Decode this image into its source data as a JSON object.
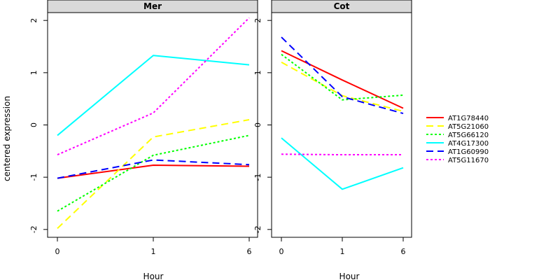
{
  "chart_data": [
    {
      "type": "line",
      "title": "Mer",
      "xlabel": "Hour",
      "ylabel": "centered expression",
      "x": [
        0,
        1,
        6
      ],
      "xticks": [
        "0",
        "1",
        "6"
      ],
      "yticks": [
        "-2",
        "-1",
        "0",
        "1",
        "2"
      ],
      "ylim": [
        -2.15,
        2.15
      ],
      "series": [
        {
          "name": "AT1G78440",
          "color": "#ff0000",
          "dash": "solid",
          "values": [
            -1.02,
            -0.77,
            -0.79
          ]
        },
        {
          "name": "AT5G21060",
          "color": "#ffff00",
          "dash": "dashed",
          "values": [
            -1.98,
            -0.23,
            0.1
          ]
        },
        {
          "name": "AT5G66120",
          "color": "#00ff00",
          "dash": "dotted",
          "values": [
            -1.65,
            -0.58,
            -0.2
          ]
        },
        {
          "name": "AT4G17300",
          "color": "#00ffff",
          "dash": "solid",
          "values": [
            -0.2,
            1.33,
            1.15
          ]
        },
        {
          "name": "AT1G60990",
          "color": "#0000ff",
          "dash": "dashed",
          "values": [
            -1.02,
            -0.67,
            -0.76
          ]
        },
        {
          "name": "AT5G11670",
          "color": "#ff00ff",
          "dash": "dotted",
          "values": [
            -0.57,
            0.23,
            2.05
          ]
        }
      ]
    },
    {
      "type": "line",
      "title": "Cot",
      "xlabel": "Hour",
      "ylabel": "",
      "x": [
        0,
        1,
        6
      ],
      "xticks": [
        "0",
        "1",
        "6"
      ],
      "yticks": [
        "-2",
        "-1",
        "0",
        "1",
        "2"
      ],
      "ylim": [
        -2.15,
        2.15
      ],
      "series": [
        {
          "name": "AT1G78440",
          "color": "#ff0000",
          "dash": "solid",
          "values": [
            1.42,
            0.86,
            0.32
          ]
        },
        {
          "name": "AT5G21060",
          "color": "#ffff00",
          "dash": "dashed",
          "values": [
            1.2,
            0.56,
            0.26
          ]
        },
        {
          "name": "AT5G66120",
          "color": "#00ff00",
          "dash": "dotted",
          "values": [
            1.35,
            0.48,
            0.57
          ]
        },
        {
          "name": "AT4G17300",
          "color": "#00ffff",
          "dash": "solid",
          "values": [
            -0.25,
            -1.23,
            -0.82
          ]
        },
        {
          "name": "AT1G60990",
          "color": "#0000ff",
          "dash": "dashed",
          "values": [
            1.68,
            0.54,
            0.22
          ]
        },
        {
          "name": "AT5G11670",
          "color": "#ff00ff",
          "dash": "dotted",
          "values": [
            -0.56,
            -0.57,
            -0.57
          ]
        }
      ]
    }
  ],
  "legend": {
    "placement": "right",
    "entries": [
      {
        "name": "AT1G78440",
        "color": "#ff0000",
        "dash": "solid"
      },
      {
        "name": "AT5G21060",
        "color": "#ffff00",
        "dash": "dashed"
      },
      {
        "name": "AT5G66120",
        "color": "#00ff00",
        "dash": "dotted"
      },
      {
        "name": "AT4G17300",
        "color": "#00ffff",
        "dash": "solid"
      },
      {
        "name": "AT1G60990",
        "color": "#0000ff",
        "dash": "dashed"
      },
      {
        "name": "AT5G11670",
        "color": "#ff00ff",
        "dash": "dotted"
      }
    ]
  }
}
